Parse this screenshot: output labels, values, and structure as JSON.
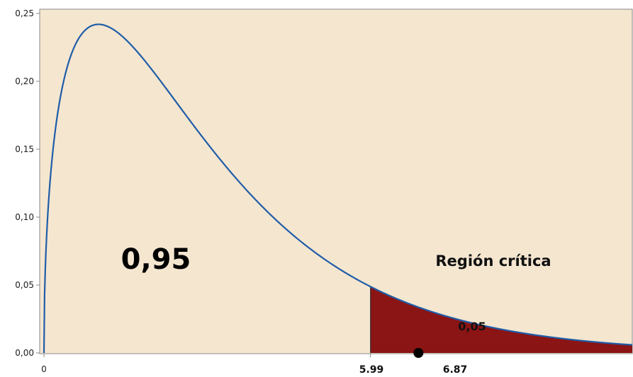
{
  "chart_data": {
    "type": "area",
    "distribution": "chi-square",
    "degrees_of_freedom": 3,
    "xlim": [
      0,
      10.2
    ],
    "ylim": [
      0,
      0.25
    ],
    "yticks": [
      "0,00",
      "0,05",
      "0,10",
      "0,15",
      "0,20",
      "0,25"
    ],
    "ytick_values": [
      0,
      0.05,
      0.1,
      0.15,
      0.2,
      0.25
    ],
    "xtick_zero": "0",
    "critical_value": 5.99,
    "critical_label": "5.99",
    "statistic_value": 6.87,
    "statistic_label": "6.87",
    "acceptance_area_label": "0,95",
    "critical_region_label": "Región crítica",
    "tail_area_label": "0,05",
    "colors": {
      "background": "#F5E6D0",
      "curve": "#1F5DA8",
      "critical_fill": "#8B1414",
      "point": "#000000",
      "axis": "#888888"
    }
  }
}
